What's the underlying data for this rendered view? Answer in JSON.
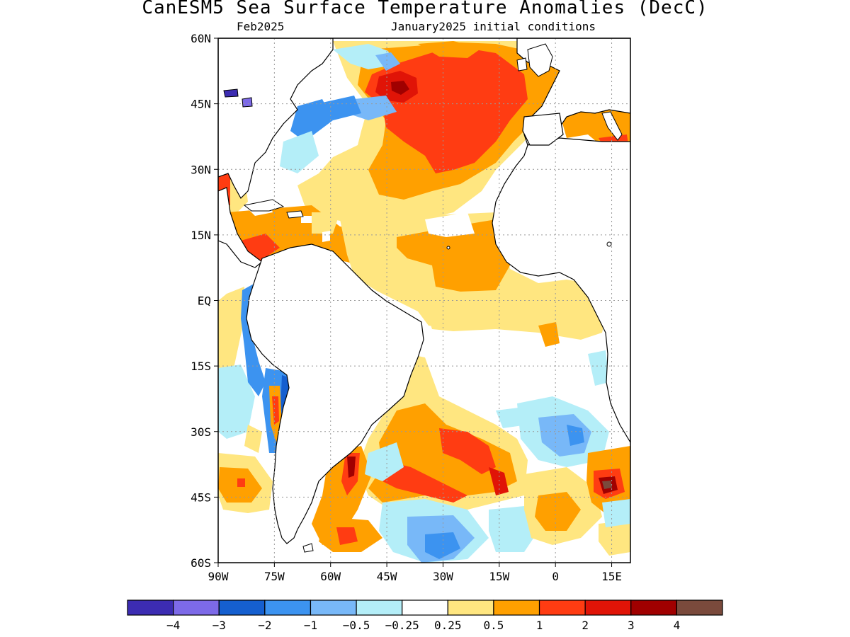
{
  "title": "CanESM5 Sea Surface Temperature Anomalies (DecC)",
  "subtitle_left": "Feb2025",
  "subtitle_right": "January2025 initial conditions",
  "map": {
    "region": "Atlantic Ocean",
    "lon_range": [
      -90,
      20
    ],
    "lat_range": [
      -60,
      60
    ],
    "lat_ticks": [
      "60N",
      "45N",
      "30N",
      "15N",
      "EQ",
      "15S",
      "30S",
      "45S",
      "60S"
    ],
    "lon_ticks": [
      "90W",
      "75W",
      "60W",
      "45W",
      "30W",
      "15W",
      "0",
      "15E"
    ],
    "grid": "dotted",
    "land_color": "#ffffff"
  },
  "colorbar": {
    "colors": [
      "#3c2cb2",
      "#7d6ae8",
      "#155fcf",
      "#3c93f0",
      "#78b8f8",
      "#b4eef8",
      "#ffffff",
      "#ffe680",
      "#ffa000",
      "#ff3c12",
      "#e01407",
      "#a00000",
      "#7a4a3c"
    ],
    "labels": [
      "−4",
      "−3",
      "−2",
      "−1",
      "−0.5",
      "−0.25",
      "0.25",
      "0.5",
      "1",
      "2",
      "3",
      "4"
    ]
  }
}
